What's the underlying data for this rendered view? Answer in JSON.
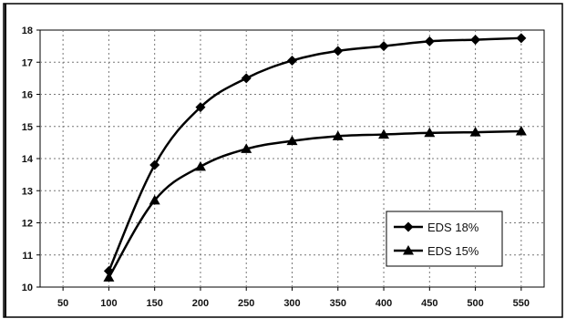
{
  "chart_data": {
    "type": "line",
    "title": "",
    "xlabel": "",
    "ylabel": "",
    "x_ticks": [
      50,
      100,
      150,
      200,
      250,
      300,
      350,
      400,
      450,
      500,
      550
    ],
    "y_ticks": [
      10,
      11,
      12,
      13,
      14,
      15,
      16,
      17,
      18
    ],
    "xlim": [
      25,
      575
    ],
    "ylim": [
      10,
      18
    ],
    "grid": "dotted, both axes",
    "legend_position": "bottom-right",
    "series": [
      {
        "name": "EDS 18%",
        "marker": "diamond",
        "color": "#000000",
        "x": [
          100,
          150,
          200,
          250,
          300,
          350,
          400,
          450,
          500,
          550
        ],
        "y": [
          10.5,
          13.8,
          15.6,
          16.5,
          17.05,
          17.35,
          17.5,
          17.65,
          17.7,
          17.75
        ]
      },
      {
        "name": "EDS 15%",
        "marker": "triangle",
        "color": "#000000",
        "x": [
          100,
          150,
          200,
          250,
          300,
          350,
          400,
          450,
          500,
          550
        ],
        "y": [
          10.3,
          12.7,
          13.75,
          14.3,
          14.55,
          14.7,
          14.75,
          14.8,
          14.82,
          14.85
        ]
      }
    ]
  }
}
